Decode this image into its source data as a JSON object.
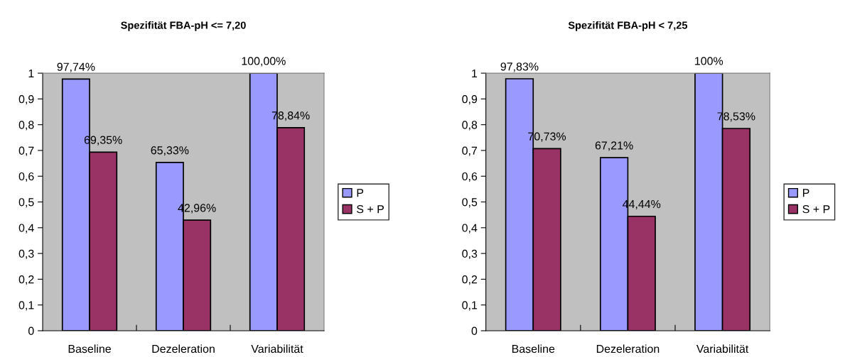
{
  "chart_data": [
    {
      "type": "bar",
      "title": "Spezifität FBA-pH <= 7,20",
      "categories": [
        "Baseline",
        "Dezeleration",
        "Variabilität"
      ],
      "series": [
        {
          "name": "P",
          "color": "#9999ff",
          "values": [
            0.9774,
            0.6533,
            1.0
          ],
          "value_labels": [
            "97,74%",
            "65,33%",
            "100,00%"
          ]
        },
        {
          "name": "S + P",
          "color": "#993366",
          "values": [
            0.6935,
            0.4296,
            0.7884
          ],
          "value_labels": [
            "69,35%",
            "42,96%",
            "78,84%"
          ]
        }
      ],
      "ylim": [
        0,
        1
      ],
      "yticks": [
        0,
        {
          "value": 0.1,
          "label": "0,1"
        },
        {
          "value": 0.2,
          "label": "0,2"
        },
        {
          "value": 0.3,
          "label": "0,3"
        },
        {
          "value": 0.4,
          "label": "0,4"
        },
        {
          "value": 0.5,
          "label": "0,5"
        },
        {
          "value": 0.6,
          "label": "0,6"
        },
        {
          "value": 0.7,
          "label": "0,7"
        },
        {
          "value": 0.8,
          "label": "0,8"
        },
        {
          "value": 0.9,
          "label": "0,9"
        },
        1
      ],
      "grid": false,
      "legend": "right"
    },
    {
      "type": "bar",
      "title": "Spezifität FBA-pH < 7,25",
      "categories": [
        "Baseline",
        "Dezeleration",
        "Variabilität"
      ],
      "series": [
        {
          "name": "P",
          "color": "#9999ff",
          "values": [
            0.9783,
            0.6721,
            1.0
          ],
          "value_labels": [
            "97,83%",
            "67,21%",
            "100%"
          ]
        },
        {
          "name": "S + P",
          "color": "#993366",
          "values": [
            0.7073,
            0.4444,
            0.7853
          ],
          "value_labels": [
            "70,73%",
            "44,44%",
            "78,53%"
          ]
        }
      ],
      "ylim": [
        0,
        1
      ],
      "yticks": [
        0,
        {
          "value": 0.1,
          "label": "0,1"
        },
        {
          "value": 0.2,
          "label": "0,2"
        },
        {
          "value": 0.3,
          "label": "0,3"
        },
        {
          "value": 0.4,
          "label": "0,4"
        },
        {
          "value": 0.5,
          "label": "0,5"
        },
        {
          "value": 0.6,
          "label": "0,6"
        },
        {
          "value": 0.7,
          "label": "0,7"
        },
        {
          "value": 0.8,
          "label": "0,8"
        },
        {
          "value": 0.9,
          "label": "0,9"
        },
        1
      ],
      "grid": false,
      "legend": "right"
    }
  ]
}
